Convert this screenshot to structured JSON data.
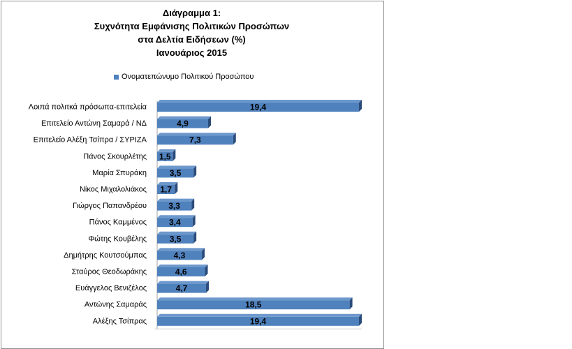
{
  "chart_data": {
    "type": "bar",
    "orientation": "horizontal",
    "title": [
      "Διάγραμμα 1:",
      "Συχνότητα Εμφάνισης Πολιτικών Προσώπων",
      "στα Δελτία Ειδήσεων (%)",
      "Ιανουάριος 2015"
    ],
    "legend": {
      "position": "top",
      "entries": [
        "Ονοματεπώνυμο Πολιτικού Προσώπου"
      ]
    },
    "categories": [
      "Λοιπά πολιτκά πρόσωπα-επιτελεία",
      "Επιτελείο Αντώνη  Σαμαρά / ΝΔ",
      "Επιτελείο Αλέξη Τσίπρα / ΣΥΡΙΖΑ",
      "Πάνος Σκουρλέτης",
      "Μαρία Σπυράκη",
      "Νίκος Μιχαλολιάκος",
      "Γιώργος Παπανδρέου",
      "Πάνος Καμμένος",
      "Φώτης Κουβέλης",
      "Δημήτρης Κουτσούμπας",
      "Σταύρος Θεοδωράκης",
      "Ευάγγελος Βενιζέλος",
      "Αντώνης Σαμαράς",
      "Αλέξης Τσίπρας"
    ],
    "series": [
      {
        "name": "Ονοματεπώνυμο Πολιτικού Προσώπου",
        "values": [
          19.4,
          4.9,
          7.3,
          1.5,
          3.5,
          1.7,
          3.3,
          3.4,
          3.5,
          4.3,
          4.6,
          4.7,
          18.5,
          19.4
        ]
      }
    ],
    "value_labels": [
      "19,4",
      "4,9",
      "7,3",
      "1,5",
      "3,5",
      "1,7",
      "3,3",
      "3,4",
      "3,5",
      "4,3",
      "4,6",
      "4,7",
      "18,5",
      "19,4"
    ],
    "xlim": [
      0,
      19.4
    ],
    "grid": false,
    "colors": {
      "bar": "#4f81bd",
      "bar_top": "#6d98cc",
      "bar_side": "#2b4c7a"
    }
  }
}
